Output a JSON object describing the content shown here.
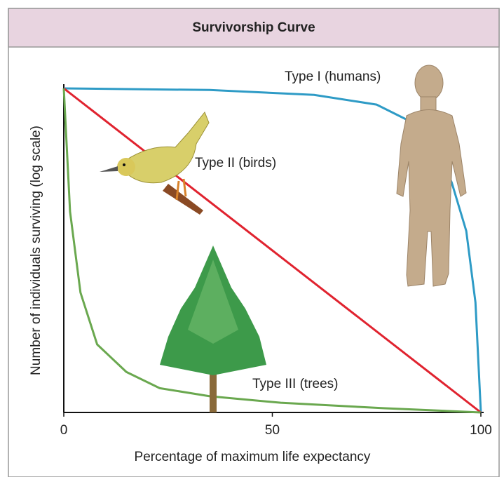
{
  "chart_data": {
    "type": "line",
    "title": "Survivorship Curve",
    "xlabel": "Percentage of maximum life expectancy",
    "ylabel": "Number of individuals surviving (log scale)",
    "xlim": [
      0,
      100
    ],
    "xticks": [
      0,
      50,
      100
    ],
    "ylim": [
      0,
      100
    ],
    "series": [
      {
        "name": "Type I (humans)",
        "color": "#2e9bc6",
        "x": [
          0,
          35,
          60,
          75,
          82,
          89,
          93,
          96.5,
          98.7,
          100
        ],
        "values": [
          100,
          99.5,
          98,
          95,
          90.5,
          82,
          71,
          56,
          34,
          0
        ]
      },
      {
        "name": "Type II (birds)",
        "color": "#e0232f",
        "x": [
          0,
          100
        ],
        "values": [
          100,
          0
        ]
      },
      {
        "name": "Type III (trees)",
        "color": "#6aa84f",
        "x": [
          0,
          1.5,
          4,
          8,
          15,
          23,
          35,
          52,
          77,
          100
        ],
        "values": [
          100,
          62,
          37,
          21,
          12.5,
          7.5,
          5,
          3,
          1.3,
          0
        ]
      }
    ]
  }
}
